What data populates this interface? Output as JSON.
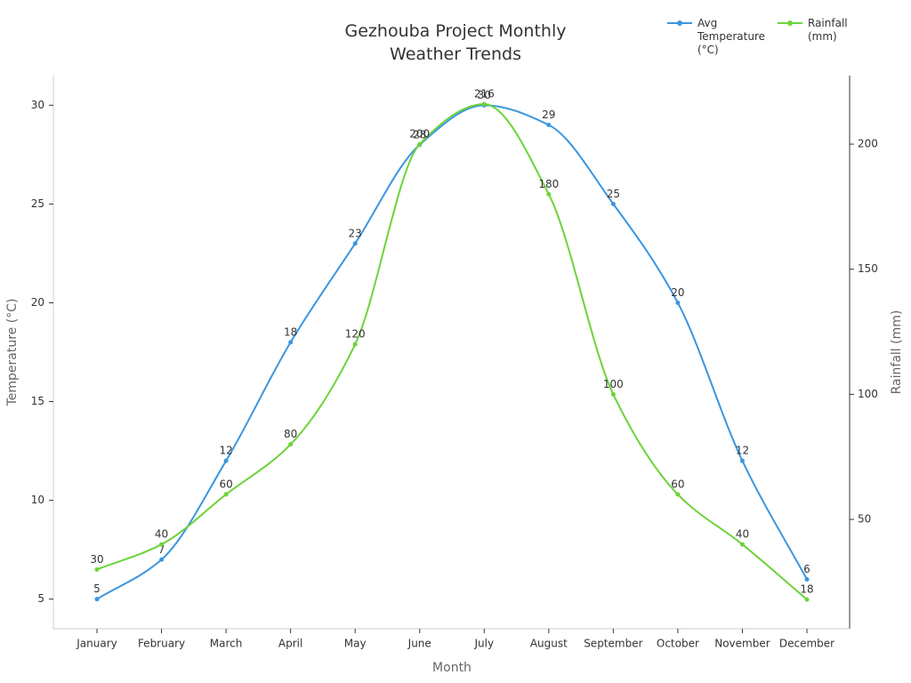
{
  "chart_data": {
    "type": "line",
    "title": "Gezhouba Project Monthly Weather Trends",
    "x_label": "Month",
    "y_label": "Temperature (°C)",
    "y2_label": "Rainfall (mm)",
    "categories": [
      "January",
      "February",
      "March",
      "April",
      "May",
      "June",
      "July",
      "August",
      "September",
      "October",
      "November",
      "December"
    ],
    "series": [
      {
        "name": "Avg Temperature (°C)",
        "color": "#3a96e0",
        "values": [
          5,
          7,
          12,
          18,
          23,
          28,
          30,
          29,
          25,
          20,
          12,
          6
        ]
      },
      {
        "name": "Rainfall (mm)",
        "color": "#6cd33a",
        "axis": "y2",
        "values": [
          30,
          40,
          60,
          80,
          120,
          200,
          216,
          180,
          100,
          60,
          40,
          18
        ]
      }
    ],
    "ylim": [
      3.5,
      31.5
    ],
    "yticks": [
      5,
      10,
      15,
      20,
      25,
      30
    ],
    "y2lim": [
      6.3,
      227.4
    ],
    "y2ticks": [
      50,
      100,
      150,
      200
    ],
    "legend": "top-right",
    "grid": false
  }
}
